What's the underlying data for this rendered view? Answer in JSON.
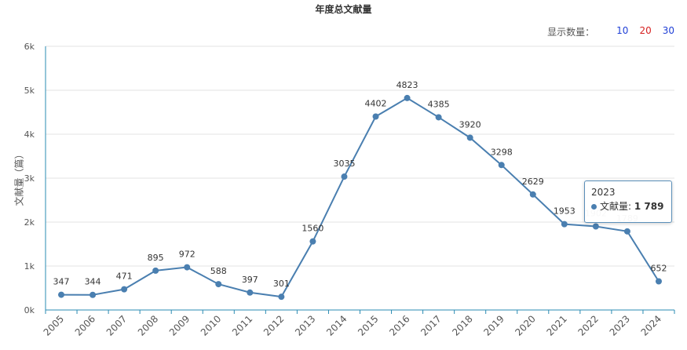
{
  "header": {
    "title": "年度总文献量"
  },
  "display_count": {
    "label": "显示数量：",
    "options": [
      {
        "label": "10",
        "color": "#1f3fd6"
      },
      {
        "label": "20",
        "color": "#d62020"
      },
      {
        "label": "30",
        "color": "#1f3fd6"
      }
    ]
  },
  "tooltip": {
    "header": "2023",
    "series_label": "文献量:",
    "value": "1 789"
  },
  "chart_data": {
    "type": "line",
    "title": "年度总文献量",
    "xlabel": "",
    "ylabel": "文献量（篇）",
    "x": [
      "2005",
      "2006",
      "2007",
      "2008",
      "2009",
      "2010",
      "2011",
      "2012",
      "2013",
      "2014",
      "2015",
      "2016",
      "2017",
      "2018",
      "2019",
      "2020",
      "2021",
      "2022",
      "2023",
      "2024"
    ],
    "series": [
      {
        "name": "文献量",
        "color": "#4a7fb0",
        "values": [
          347,
          344,
          471,
          895,
          972,
          588,
          397,
          301,
          1560,
          3035,
          4402,
          4823,
          4385,
          3920,
          3298,
          2629,
          1953,
          1902,
          1789,
          652
        ],
        "labels": [
          "347",
          "344",
          "471",
          "895",
          "972",
          "588",
          "397",
          "301",
          "1560",
          "3035",
          "4402",
          "4823",
          "4385",
          "3920",
          "3298",
          "2629",
          "1953",
          "1902",
          "1789",
          "652"
        ]
      }
    ],
    "ylim": [
      0,
      6000
    ],
    "yticks": [
      0,
      1000,
      2000,
      3000,
      4000,
      5000,
      6000
    ],
    "ytick_labels": [
      "0k",
      "1k",
      "2k",
      "3k",
      "4k",
      "5k",
      "6k"
    ],
    "grid": true,
    "highlighted_point": "2023"
  }
}
